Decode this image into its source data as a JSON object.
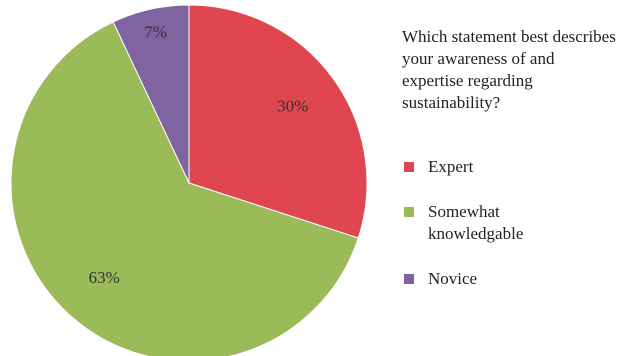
{
  "chart_data": {
    "type": "pie",
    "title": "Which statement best describes your awareness of and expertise regarding sustainability?",
    "legend_position": "right",
    "slices": [
      {
        "name": "Expert",
        "value": 30,
        "label": "30%",
        "color": "#e0464f"
      },
      {
        "name": "Somewhat knowledgable",
        "value": 63,
        "label": "63%",
        "color": "#9bbb59"
      },
      {
        "name": "Novice",
        "value": 7,
        "label": "7%",
        "color": "#8064a2"
      }
    ]
  },
  "legend": {
    "expert": "Expert",
    "somewhat": "Somewhat\nknowledgable",
    "novice": "Novice"
  }
}
